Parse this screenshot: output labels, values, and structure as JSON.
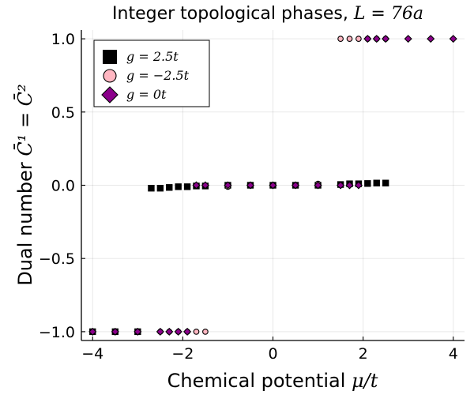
{
  "chart_data": {
    "type": "scatter",
    "title": "Integer topological phases, ",
    "title_math": "L = 76a",
    "xlabel": "Chemical potential ",
    "xlabel_math": "μ/t",
    "ylabel": "Dual number ",
    "ylabel_math": "C̄¹ = C̄²",
    "xlim": [
      -4.25,
      4.25
    ],
    "ylim": [
      -1.06,
      1.06
    ],
    "xticks": [
      -4,
      -2,
      0,
      2,
      4
    ],
    "xtick_labels": [
      "−4",
      "−2",
      "0",
      "2",
      "4"
    ],
    "yticks": [
      -1.0,
      -0.5,
      0.0,
      0.5,
      1.0
    ],
    "ytick_labels": [
      "−1.0",
      "−0.5",
      "0.0",
      "0.5",
      "1.0"
    ],
    "grid": true,
    "legend_position": "top-left",
    "series": [
      {
        "name": "g = 2.5t",
        "marker": "square",
        "color": "#000000",
        "x": [
          -4.0,
          -3.5,
          -3.0,
          -2.7,
          -2.5,
          -2.3,
          -2.1,
          -1.9,
          -1.7,
          -1.5,
          -1.0,
          -0.5,
          0.0,
          0.5,
          1.0,
          1.5,
          1.7,
          1.9,
          2.1,
          2.3,
          2.5
        ],
        "y": [
          -1.0,
          -1.0,
          -1.0,
          -0.02,
          -0.02,
          -0.015,
          -0.01,
          -0.01,
          -0.005,
          -0.005,
          0.0,
          0.0,
          0.0,
          0.0,
          0.0,
          0.005,
          0.01,
          0.01,
          0.012,
          0.015,
          0.015
        ]
      },
      {
        "name": "g = −2.5t",
        "marker": "circle",
        "color": "#ffb6c1",
        "x": [
          -4.0,
          -3.5,
          -3.0,
          -2.5,
          -2.3,
          -2.1,
          -1.9,
          -1.7,
          -1.5,
          -1.0,
          -0.5,
          0.0,
          0.5,
          1.0,
          1.5,
          1.7,
          1.9,
          2.1,
          2.3,
          2.5
        ],
        "y": [
          -1.0,
          -1.0,
          -1.0,
          -1.0,
          -1.0,
          -1.0,
          -1.0,
          -1.0,
          -1.0,
          -0.01,
          0.0,
          0.0,
          0.0,
          0.01,
          1.0,
          1.0,
          1.0,
          1.0,
          1.0,
          1.0
        ]
      },
      {
        "name": "g = 0t",
        "marker": "diamond",
        "color": "#8b008b",
        "x": [
          -4.0,
          -3.5,
          -3.0,
          -2.5,
          -2.3,
          -2.1,
          -1.9,
          -1.7,
          -1.5,
          -1.0,
          -0.5,
          0.0,
          0.5,
          1.0,
          1.5,
          1.7,
          1.9,
          2.1,
          2.3,
          2.5,
          3.0,
          3.5,
          4.0
        ],
        "y": [
          -1.0,
          -1.0,
          -1.0,
          -1.0,
          -1.0,
          -1.0,
          -1.0,
          0.0,
          0.0,
          0.0,
          0.0,
          0.0,
          0.0,
          0.0,
          0.0,
          0.0,
          0.0,
          1.0,
          1.0,
          1.0,
          1.0,
          1.0,
          1.0
        ]
      }
    ]
  }
}
